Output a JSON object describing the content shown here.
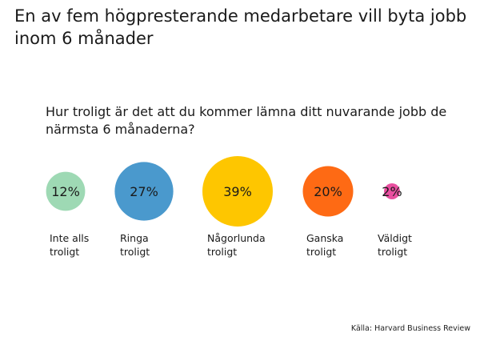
{
  "chart_data": {
    "type": "bubble",
    "title": "En av fem högpresterande medarbetare vill byta jobb inom 6 månader",
    "subtitle": "Hur troligt är det att du kommer lämna ditt nuvarande jobb de närmsta 6 månaderna?",
    "categories": [
      {
        "line1": "Inte alls",
        "line2": "troligt"
      },
      {
        "line1": "Ringa",
        "line2": "troligt"
      },
      {
        "line1": "Någorlunda",
        "line2": "troligt"
      },
      {
        "line1": "Ganska",
        "line2": "troligt"
      },
      {
        "line1": "Väldigt",
        "line2": "troligt"
      }
    ],
    "values": [
      12,
      27,
      39,
      20,
      2
    ],
    "value_labels": [
      "12%",
      "27%",
      "39%",
      "20%",
      "2%"
    ],
    "colors": [
      "#9ed9b4",
      "#4a99cd",
      "#fec600",
      "#fe6a14",
      "#e94fa0"
    ],
    "source": "Källa: Harvard Business Review"
  }
}
